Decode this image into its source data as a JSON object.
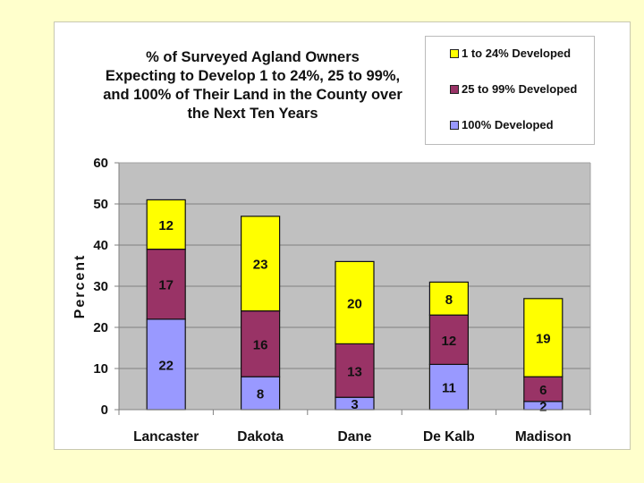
{
  "chart_data": {
    "type": "bar",
    "stacked": true,
    "title_lines": [
      "% of Surveyed Agland Owners",
      "Expecting to Develop 1 to 24%, 25 to 99%,",
      "and 100% of Their Land in the County over",
      "the Next Ten Years"
    ],
    "xlabel": "",
    "ylabel": "Percent",
    "ylim": [
      0,
      60
    ],
    "yticks": [
      0,
      10,
      20,
      30,
      40,
      50,
      60
    ],
    "grid": true,
    "legend_position": "top-right",
    "categories": [
      "Lancaster",
      "Dakota",
      "Dane",
      "De Kalb",
      "Madison"
    ],
    "series": [
      {
        "name": "100% Developed",
        "color": "#9999ff",
        "values": [
          22,
          8,
          3,
          11,
          2
        ]
      },
      {
        "name": "25 to 99% Developed",
        "color": "#993366",
        "values": [
          17,
          16,
          13,
          12,
          6
        ]
      },
      {
        "name": "1 to 24% Developed",
        "color": "#ffff00",
        "values": [
          12,
          23,
          20,
          8,
          19
        ]
      }
    ],
    "legend_order": [
      "1 to 24% Developed",
      "25 to 99% Developed",
      "100% Developed"
    ]
  },
  "colors": {
    "page_background": "#ffffcc",
    "plot_background": "#c0c0c0"
  }
}
